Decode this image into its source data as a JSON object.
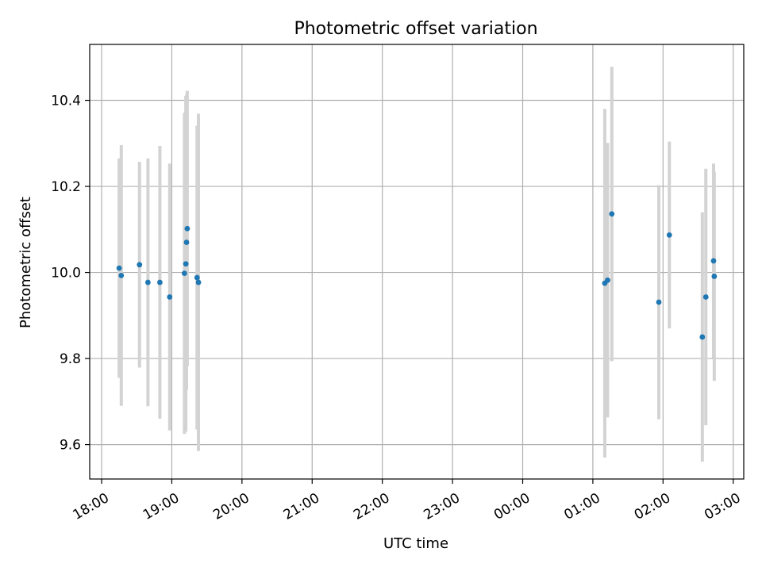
{
  "chart_data": {
    "type": "scatter",
    "title": "Photometric offset variation",
    "xlabel": "UTC time",
    "ylabel": "Photometric offset",
    "x_unit": "hours since 18:00 UTC",
    "xlim": [
      -0.17,
      9.15
    ],
    "ylim": [
      9.52,
      10.53
    ],
    "grid": true,
    "colors": {
      "points": "#1f77b4",
      "errorbars": "#d3d3d3"
    },
    "x_ticks": [
      {
        "value": 0,
        "label": "18:00"
      },
      {
        "value": 1,
        "label": "19:00"
      },
      {
        "value": 2,
        "label": "20:00"
      },
      {
        "value": 3,
        "label": "21:00"
      },
      {
        "value": 4,
        "label": "22:00"
      },
      {
        "value": 5,
        "label": "23:00"
      },
      {
        "value": 6,
        "label": "00:00"
      },
      {
        "value": 7,
        "label": "01:00"
      },
      {
        "value": 8,
        "label": "02:00"
      },
      {
        "value": 9,
        "label": "03:00"
      }
    ],
    "y_ticks": [
      {
        "value": 9.6,
        "label": "9.6"
      },
      {
        "value": 9.8,
        "label": "9.8"
      },
      {
        "value": 10.0,
        "label": "10.0"
      },
      {
        "value": 10.2,
        "label": "10.2"
      },
      {
        "value": 10.4,
        "label": "10.4"
      }
    ],
    "points": [
      {
        "x": 0.25,
        "y": 10.01,
        "err": 0.255
      },
      {
        "x": 0.28,
        "y": 9.993,
        "err": 0.303
      },
      {
        "x": 0.54,
        "y": 10.018,
        "err": 0.239
      },
      {
        "x": 0.66,
        "y": 9.977,
        "err": 0.288
      },
      {
        "x": 0.83,
        "y": 9.977,
        "err": 0.317
      },
      {
        "x": 0.97,
        "y": 9.943,
        "err": 0.31
      },
      {
        "x": 1.18,
        "y": 9.998,
        "err": 0.373
      },
      {
        "x": 1.2,
        "y": 10.02,
        "err": 0.39
      },
      {
        "x": 1.21,
        "y": 10.07,
        "err": 0.343
      },
      {
        "x": 1.22,
        "y": 10.102,
        "err": 0.32
      },
      {
        "x": 1.36,
        "y": 9.988,
        "err": 0.353
      },
      {
        "x": 1.38,
        "y": 9.977,
        "err": 0.392
      },
      {
        "x": 7.17,
        "y": 9.975,
        "err": 0.405
      },
      {
        "x": 7.21,
        "y": 9.982,
        "err": 0.319
      },
      {
        "x": 7.27,
        "y": 10.136,
        "err": 0.342
      },
      {
        "x": 7.94,
        "y": 9.931,
        "err": 0.272
      },
      {
        "x": 8.09,
        "y": 10.087,
        "err": 0.217
      },
      {
        "x": 8.56,
        "y": 9.85,
        "err": 0.29
      },
      {
        "x": 8.61,
        "y": 9.943,
        "err": 0.298
      },
      {
        "x": 8.72,
        "y": 10.027,
        "err": 0.226
      },
      {
        "x": 8.73,
        "y": 9.991,
        "err": 0.243
      }
    ]
  }
}
